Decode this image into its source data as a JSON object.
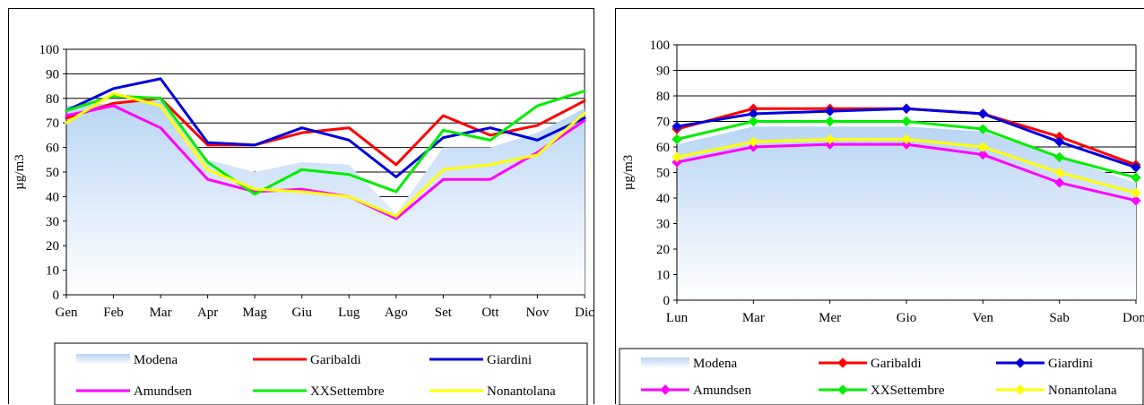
{
  "chart_data": [
    {
      "type": "line",
      "categories": [
        "Gen",
        "Feb",
        "Mar",
        "Apr",
        "Mag",
        "Giu",
        "Lug",
        "Ago",
        "Set",
        "Ott",
        "Nov",
        "Dic"
      ],
      "ylabel": "µg/m3",
      "xlabel": "",
      "ylim": [
        0,
        100
      ],
      "yticks": [
        "0",
        "10",
        "20",
        "30",
        "40",
        "50",
        "60",
        "70",
        "80",
        "90",
        "100"
      ],
      "grid": "horizontal",
      "markers": false,
      "legend_position": "bottom",
      "series": [
        {
          "name": "Modena",
          "kind": "area",
          "color": "#b9d5f3",
          "values": [
            77,
            78,
            79,
            55,
            50,
            54,
            53,
            33,
            60,
            60,
            66,
            76
          ]
        },
        {
          "name": "Garibaldi",
          "color": "#ff0000",
          "values": [
            72,
            78,
            80,
            61,
            61,
            66,
            68,
            53,
            73,
            65,
            69,
            79
          ]
        },
        {
          "name": "Giardini",
          "color": "#0000dd",
          "values": [
            75,
            84,
            88,
            62,
            61,
            68,
            63,
            48,
            64,
            68,
            63,
            72
          ]
        },
        {
          "name": "Amundsen",
          "color": "#ff00ff",
          "values": [
            73,
            77,
            68,
            47,
            42,
            43,
            40,
            31,
            47,
            47,
            58,
            71
          ]
        },
        {
          "name": "XXSettembre",
          "color": "#00ee00",
          "values": [
            75,
            81,
            80,
            54,
            41,
            51,
            49,
            42,
            67,
            63,
            77,
            83
          ]
        },
        {
          "name": "Nonantolana",
          "color": "#ffff00",
          "values": [
            70,
            82,
            77,
            51,
            43,
            42,
            40,
            32,
            51,
            53,
            57,
            74
          ]
        }
      ]
    },
    {
      "type": "line",
      "categories": [
        "Lun",
        "Mar",
        "Mer",
        "Gio",
        "Ven",
        "Sab",
        "Dom"
      ],
      "ylabel": "µg/m3",
      "xlabel": "",
      "ylim": [
        0,
        100
      ],
      "yticks": [
        "0",
        "10",
        "20",
        "30",
        "40",
        "50",
        "60",
        "70",
        "80",
        "90",
        "100"
      ],
      "grid": "horizontal",
      "markers": true,
      "legend_position": "bottom",
      "series": [
        {
          "name": "Modena",
          "kind": "area",
          "color": "#b9d5f3",
          "values": [
            61,
            68,
            68,
            68,
            66,
            56,
            46
          ]
        },
        {
          "name": "Garibaldi",
          "color": "#ff0000",
          "values": [
            67,
            75,
            75,
            75,
            73,
            64,
            53
          ]
        },
        {
          "name": "Giardini",
          "color": "#0000dd",
          "values": [
            68,
            73,
            74,
            75,
            73,
            62,
            52
          ]
        },
        {
          "name": "Amundsen",
          "color": "#ff00ff",
          "values": [
            54,
            60,
            61,
            61,
            57,
            46,
            39
          ]
        },
        {
          "name": "XXSettembre",
          "color": "#00ee00",
          "values": [
            63,
            70,
            70,
            70,
            67,
            56,
            48
          ]
        },
        {
          "name": "Nonantolana",
          "color": "#ffff00",
          "values": [
            56,
            62,
            63,
            63,
            60,
            50,
            42
          ]
        }
      ]
    }
  ]
}
